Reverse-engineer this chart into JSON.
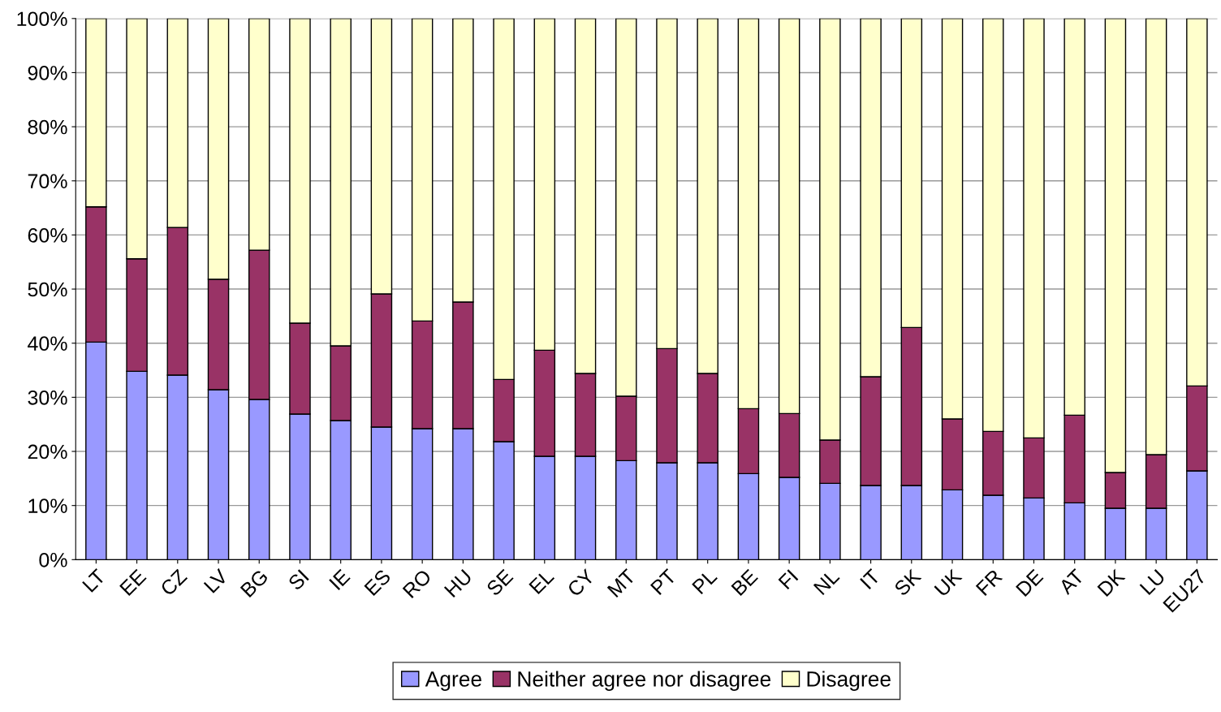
{
  "chart_data": {
    "type": "bar",
    "stacked": true,
    "categories": [
      "LT",
      "EE",
      "CZ",
      "LV",
      "BG",
      "SI",
      "IE",
      "ES",
      "RO",
      "HU",
      "SE",
      "EL",
      "CY",
      "MT",
      "PT",
      "PL",
      "BE",
      "FI",
      "NL",
      "IT",
      "SK",
      "UK",
      "FR",
      "DE",
      "AT",
      "DK",
      "LU",
      "EU27"
    ],
    "series": [
      {
        "name": "Agree",
        "color": "#9999ff",
        "values": [
          40.2,
          34.8,
          34.1,
          31.4,
          29.6,
          26.9,
          25.7,
          24.5,
          24.2,
          24.2,
          21.8,
          19.1,
          19.1,
          18.3,
          17.9,
          17.9,
          15.9,
          15.2,
          14.1,
          13.7,
          13.7,
          12.9,
          11.9,
          11.4,
          10.5,
          9.5,
          9.5,
          16.4
        ]
      },
      {
        "name": "Neither agree nor disagree",
        "color": "#993366",
        "values": [
          25.0,
          20.8,
          27.3,
          20.4,
          27.6,
          16.8,
          13.8,
          24.6,
          19.9,
          23.4,
          11.5,
          19.6,
          15.3,
          11.9,
          21.1,
          16.5,
          12.0,
          11.8,
          8.0,
          20.1,
          29.2,
          13.1,
          11.8,
          11.1,
          16.2,
          6.6,
          9.9,
          15.7
        ]
      },
      {
        "name": "Disagree",
        "color": "#ffffcc",
        "values": [
          34.8,
          44.4,
          38.6,
          48.2,
          42.8,
          56.3,
          60.5,
          50.9,
          55.9,
          52.4,
          66.7,
          61.3,
          65.6,
          69.8,
          61.0,
          65.6,
          72.1,
          73.0,
          77.9,
          66.2,
          57.1,
          74.0,
          76.3,
          77.5,
          73.3,
          83.9,
          80.6,
          67.9
        ]
      }
    ],
    "ylim": [
      0,
      100
    ],
    "yticks": [
      {
        "value": 0,
        "label": "0%"
      },
      {
        "value": 10,
        "label": "10%"
      },
      {
        "value": 20,
        "label": "20%"
      },
      {
        "value": 30,
        "label": "30%"
      },
      {
        "value": 40,
        "label": "40%"
      },
      {
        "value": 50,
        "label": "50%"
      },
      {
        "value": 60,
        "label": "60%"
      },
      {
        "value": 70,
        "label": "70%"
      },
      {
        "value": 80,
        "label": "80%"
      },
      {
        "value": 90,
        "label": "90%"
      },
      {
        "value": 100,
        "label": "100%"
      }
    ],
    "grid": "y",
    "legend": "bottom"
  }
}
